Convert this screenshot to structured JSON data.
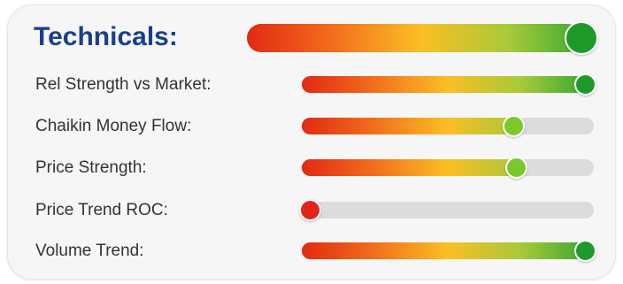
{
  "card": {
    "title": "Technicals:",
    "overall": {
      "level": 1.0,
      "knob_color": "#1f9a2a"
    },
    "rows": [
      {
        "label": "Rel Strength vs Market:",
        "level": 1.0,
        "knob_color": "#1f9a2a"
      },
      {
        "label": "Chaikin Money Flow:",
        "level": 0.74,
        "knob_color": "#7bc82b"
      },
      {
        "label": "Price Strength:",
        "level": 0.75,
        "knob_color": "#7bc82b"
      },
      {
        "label": "Price Trend ROC:",
        "level": 0.0,
        "knob_color": "#e3231a"
      },
      {
        "label": "Volume Trend:",
        "level": 1.0,
        "knob_color": "#1f9a2a"
      }
    ]
  }
}
